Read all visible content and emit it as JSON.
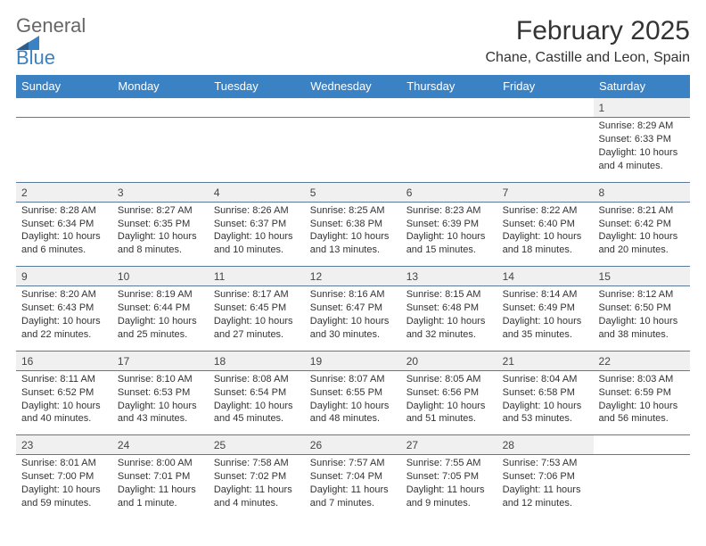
{
  "logo": {
    "word1": "General",
    "word2": "Blue",
    "color_text": "#666666",
    "color_blue": "#3b82c4"
  },
  "title": "February 2025",
  "location": "Chane, Castille and Leon, Spain",
  "colors": {
    "header_bg": "#3b82c4",
    "header_text": "#ffffff",
    "daynum_bg": "#f0f0f0",
    "border": "#5a7a9a",
    "text": "#333333"
  },
  "typography": {
    "title_fontsize": 30,
    "location_fontsize": 16,
    "dayheader_fontsize": 13,
    "cell_fontsize": 11
  },
  "day_headers": [
    "Sunday",
    "Monday",
    "Tuesday",
    "Wednesday",
    "Thursday",
    "Friday",
    "Saturday"
  ],
  "weeks": [
    {
      "nums": [
        "",
        "",
        "",
        "",
        "",
        "",
        "1"
      ],
      "cells": [
        "",
        "",
        "",
        "",
        "",
        "",
        "Sunrise: 8:29 AM\nSunset: 6:33 PM\nDaylight: 10 hours and 4 minutes."
      ]
    },
    {
      "nums": [
        "2",
        "3",
        "4",
        "5",
        "6",
        "7",
        "8"
      ],
      "cells": [
        "Sunrise: 8:28 AM\nSunset: 6:34 PM\nDaylight: 10 hours and 6 minutes.",
        "Sunrise: 8:27 AM\nSunset: 6:35 PM\nDaylight: 10 hours and 8 minutes.",
        "Sunrise: 8:26 AM\nSunset: 6:37 PM\nDaylight: 10 hours and 10 minutes.",
        "Sunrise: 8:25 AM\nSunset: 6:38 PM\nDaylight: 10 hours and 13 minutes.",
        "Sunrise: 8:23 AM\nSunset: 6:39 PM\nDaylight: 10 hours and 15 minutes.",
        "Sunrise: 8:22 AM\nSunset: 6:40 PM\nDaylight: 10 hours and 18 minutes.",
        "Sunrise: 8:21 AM\nSunset: 6:42 PM\nDaylight: 10 hours and 20 minutes."
      ]
    },
    {
      "nums": [
        "9",
        "10",
        "11",
        "12",
        "13",
        "14",
        "15"
      ],
      "cells": [
        "Sunrise: 8:20 AM\nSunset: 6:43 PM\nDaylight: 10 hours and 22 minutes.",
        "Sunrise: 8:19 AM\nSunset: 6:44 PM\nDaylight: 10 hours and 25 minutes.",
        "Sunrise: 8:17 AM\nSunset: 6:45 PM\nDaylight: 10 hours and 27 minutes.",
        "Sunrise: 8:16 AM\nSunset: 6:47 PM\nDaylight: 10 hours and 30 minutes.",
        "Sunrise: 8:15 AM\nSunset: 6:48 PM\nDaylight: 10 hours and 32 minutes.",
        "Sunrise: 8:14 AM\nSunset: 6:49 PM\nDaylight: 10 hours and 35 minutes.",
        "Sunrise: 8:12 AM\nSunset: 6:50 PM\nDaylight: 10 hours and 38 minutes."
      ]
    },
    {
      "nums": [
        "16",
        "17",
        "18",
        "19",
        "20",
        "21",
        "22"
      ],
      "cells": [
        "Sunrise: 8:11 AM\nSunset: 6:52 PM\nDaylight: 10 hours and 40 minutes.",
        "Sunrise: 8:10 AM\nSunset: 6:53 PM\nDaylight: 10 hours and 43 minutes.",
        "Sunrise: 8:08 AM\nSunset: 6:54 PM\nDaylight: 10 hours and 45 minutes.",
        "Sunrise: 8:07 AM\nSunset: 6:55 PM\nDaylight: 10 hours and 48 minutes.",
        "Sunrise: 8:05 AM\nSunset: 6:56 PM\nDaylight: 10 hours and 51 minutes.",
        "Sunrise: 8:04 AM\nSunset: 6:58 PM\nDaylight: 10 hours and 53 minutes.",
        "Sunrise: 8:03 AM\nSunset: 6:59 PM\nDaylight: 10 hours and 56 minutes."
      ]
    },
    {
      "nums": [
        "23",
        "24",
        "25",
        "26",
        "27",
        "28",
        ""
      ],
      "cells": [
        "Sunrise: 8:01 AM\nSunset: 7:00 PM\nDaylight: 10 hours and 59 minutes.",
        "Sunrise: 8:00 AM\nSunset: 7:01 PM\nDaylight: 11 hours and 1 minute.",
        "Sunrise: 7:58 AM\nSunset: 7:02 PM\nDaylight: 11 hours and 4 minutes.",
        "Sunrise: 7:57 AM\nSunset: 7:04 PM\nDaylight: 11 hours and 7 minutes.",
        "Sunrise: 7:55 AM\nSunset: 7:05 PM\nDaylight: 11 hours and 9 minutes.",
        "Sunrise: 7:53 AM\nSunset: 7:06 PM\nDaylight: 11 hours and 12 minutes.",
        ""
      ]
    }
  ]
}
